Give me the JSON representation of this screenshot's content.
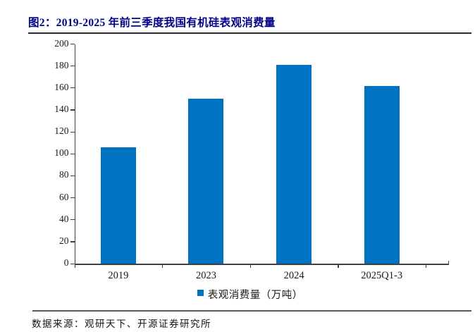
{
  "header": {
    "title": "图2：2019-2025 年前三季度我国有机硅表观消费量"
  },
  "chart_data": {
    "type": "bar",
    "title": "图2：2019-2025 年前三季度我国有机硅表观消费量",
    "categories": [
      "2019",
      "2023",
      "2024",
      "2025Q1-3"
    ],
    "series": [
      {
        "name": "表观消费量（万吨）",
        "values": [
          106,
          150,
          181,
          162
        ]
      }
    ],
    "xlabel": "",
    "ylabel": "",
    "ylim": [
      0,
      200
    ],
    "ytick_step": 20,
    "grid": false,
    "legend_position": "bottom",
    "bar_color": "#0072C2",
    "axis_color": "#404040"
  },
  "legend": {
    "marker_icon": "blue-square-icon",
    "label": "表观消费量（万吨）"
  },
  "footer": {
    "source": "数据来源：观研天下、开源证券研究所"
  },
  "colors": {
    "title_navy": "#000088",
    "bar_blue": "#0072C2",
    "title_rule": "#2b2b2b",
    "footer_rule": "#5a5a5a"
  }
}
